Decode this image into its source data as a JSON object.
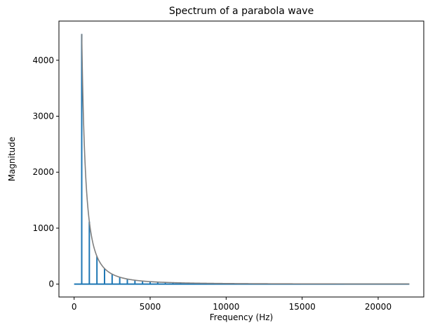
{
  "chart_data": {
    "type": "line",
    "title": "Spectrum of a parabola wave",
    "xlabel": "Frequency (Hz)",
    "ylabel": "Magnitude",
    "xlim": [
      -1000,
      23000
    ],
    "ylim": [
      -230,
      4700
    ],
    "xticks": [
      0,
      5000,
      10000,
      15000,
      20000
    ],
    "xtick_labels": [
      "0",
      "5000",
      "10000",
      "15000",
      "20000"
    ],
    "yticks": [
      0,
      1000,
      2000,
      3000,
      4000
    ],
    "ytick_labels": [
      "0",
      "1000",
      "2000",
      "3000",
      "4000"
    ],
    "grid": false,
    "legend": "none",
    "series": [
      {
        "kind": "spectrum",
        "color": "#1f77b4",
        "fundamental_hz": 500,
        "harmonic_count": 44,
        "fundamental_magnitude": 4470,
        "falloff_exponent": 2,
        "x_range": [
          0,
          22050
        ]
      },
      {
        "kind": "envelope",
        "color": "#808080",
        "formula": "4470 * (500 / f)^2",
        "x_range": [
          500,
          22050
        ]
      }
    ]
  }
}
